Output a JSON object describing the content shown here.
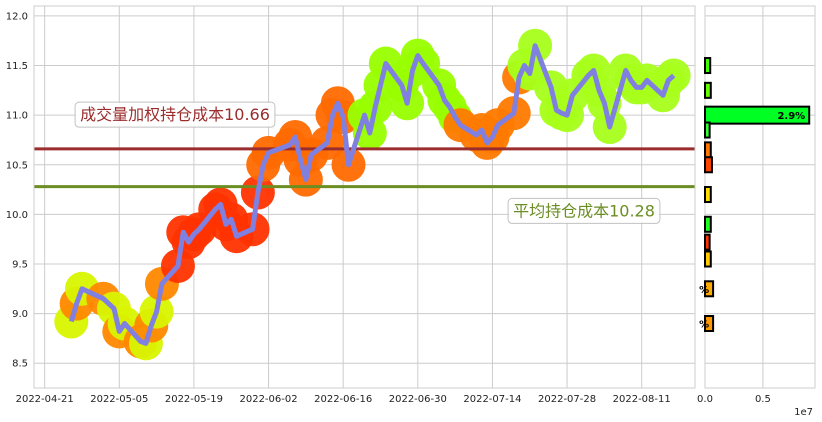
{
  "chart_data": [
    {
      "type": "line",
      "x_ticks": [
        "2022-04-21",
        "2022-05-05",
        "2022-05-19",
        "2022-06-02",
        "2022-06-16",
        "2022-06-30",
        "2022-07-14",
        "2022-07-28",
        "2022-08-11"
      ],
      "y_ticks": [
        "8.5",
        "9.0",
        "9.5",
        "10.0",
        "10.5",
        "11.0",
        "11.5",
        "12.0"
      ],
      "ylim": [
        8.25,
        12.1
      ],
      "xlim": [
        "2022-04-19",
        "2022-08-21"
      ],
      "grid": true,
      "series": [
        {
          "color": "#8080e0",
          "points": [
            [
              "2022-04-26",
              8.92
            ],
            [
              "2022-04-27",
              9.1
            ],
            [
              "2022-04-28",
              9.25
            ],
            [
              "2022-05-02",
              9.15
            ],
            [
              "2022-05-04",
              9.05
            ],
            [
              "2022-05-05",
              8.82
            ],
            [
              "2022-05-06",
              8.9
            ],
            [
              "2022-05-09",
              8.72
            ],
            [
              "2022-05-10",
              8.7
            ],
            [
              "2022-05-11",
              8.88
            ],
            [
              "2022-05-12",
              9.02
            ],
            [
              "2022-05-13",
              9.3
            ],
            [
              "2022-05-16",
              9.48
            ],
            [
              "2022-05-17",
              9.82
            ],
            [
              "2022-05-18",
              9.72
            ],
            [
              "2022-05-19",
              9.8
            ],
            [
              "2022-05-20",
              9.85
            ],
            [
              "2022-05-23",
              10.05
            ],
            [
              "2022-05-24",
              10.1
            ],
            [
              "2022-05-25",
              9.9
            ],
            [
              "2022-05-26",
              9.95
            ],
            [
              "2022-05-27",
              9.78
            ],
            [
              "2022-05-30",
              9.85
            ],
            [
              "2022-05-31",
              10.22
            ],
            [
              "2022-06-01",
              10.5
            ],
            [
              "2022-06-02",
              10.62
            ],
            [
              "2022-06-06",
              10.7
            ],
            [
              "2022-06-07",
              10.78
            ],
            [
              "2022-06-08",
              10.55
            ],
            [
              "2022-06-09",
              10.35
            ],
            [
              "2022-06-10",
              10.6
            ],
            [
              "2022-06-13",
              10.72
            ],
            [
              "2022-06-14",
              11.0
            ],
            [
              "2022-06-15",
              11.12
            ],
            [
              "2022-06-16",
              10.98
            ],
            [
              "2022-06-17",
              10.5
            ],
            [
              "2022-06-20",
              11.0
            ],
            [
              "2022-06-21",
              10.82
            ],
            [
              "2022-06-22",
              11.08
            ],
            [
              "2022-06-23",
              11.3
            ],
            [
              "2022-06-24",
              11.52
            ],
            [
              "2022-06-27",
              11.3
            ],
            [
              "2022-06-28",
              11.12
            ],
            [
              "2022-06-29",
              11.45
            ],
            [
              "2022-06-30",
              11.6
            ],
            [
              "2022-07-01",
              11.52
            ],
            [
              "2022-07-04",
              11.3
            ],
            [
              "2022-07-05",
              11.15
            ],
            [
              "2022-07-06",
              11.08
            ],
            [
              "2022-07-07",
              10.98
            ],
            [
              "2022-07-08",
              10.9
            ],
            [
              "2022-07-11",
              10.8
            ],
            [
              "2022-07-12",
              10.85
            ],
            [
              "2022-07-13",
              10.72
            ],
            [
              "2022-07-14",
              10.78
            ],
            [
              "2022-07-15",
              10.9
            ],
            [
              "2022-07-18",
              11.02
            ],
            [
              "2022-07-19",
              11.38
            ],
            [
              "2022-07-20",
              11.5
            ],
            [
              "2022-07-21",
              11.42
            ],
            [
              "2022-07-22",
              11.7
            ],
            [
              "2022-07-25",
              11.28
            ],
            [
              "2022-07-26",
              11.05
            ],
            [
              "2022-07-27",
              11.02
            ],
            [
              "2022-07-28",
              11.0
            ],
            [
              "2022-07-29",
              11.2
            ],
            [
              "2022-08-01",
              11.4
            ],
            [
              "2022-08-02",
              11.45
            ],
            [
              "2022-08-03",
              11.25
            ],
            [
              "2022-08-04",
              11.12
            ],
            [
              "2022-08-05",
              10.88
            ],
            [
              "2022-08-08",
              11.45
            ],
            [
              "2022-08-09",
              11.35
            ],
            [
              "2022-08-10",
              11.28
            ],
            [
              "2022-08-11",
              11.28
            ],
            [
              "2022-08-12",
              11.35
            ],
            [
              "2022-08-15",
              11.2
            ],
            [
              "2022-08-16",
              11.35
            ],
            [
              "2022-08-17",
              11.4
            ]
          ]
        }
      ],
      "hlines": [
        {
          "label": "成交量加权持仓成本10.66",
          "value": 10.66,
          "color": "#9b2d2d",
          "text_color": "#9b2d2d"
        },
        {
          "label": "平均持仓成本10.28",
          "value": 10.28,
          "color": "#6b8e23",
          "text_color": "#6b8e23"
        }
      ]
    },
    {
      "type": "bar",
      "orientation": "horizontal",
      "x_ticks": [
        "0.0",
        "0.5"
      ],
      "x_multiplier": "1e7",
      "xlim": [
        0,
        0.95
      ],
      "bars": [
        {
          "price": 11.5,
          "value": 0.045,
          "color": "#44ff00",
          "label": ""
        },
        {
          "price": 11.25,
          "value": 0.05,
          "color": "#66ff00",
          "label": ""
        },
        {
          "price": 11.0,
          "value": 0.9,
          "color": "#00ff22",
          "label": "2.9%"
        },
        {
          "price": 10.85,
          "value": 0.04,
          "color": "#33ff33",
          "label": ""
        },
        {
          "price": 10.65,
          "value": 0.05,
          "color": "#ff7700",
          "label": ""
        },
        {
          "price": 10.5,
          "value": 0.06,
          "color": "#ff4400",
          "label": ""
        },
        {
          "price": 10.2,
          "value": 0.05,
          "color": "#ffdd00",
          "label": ""
        },
        {
          "price": 9.9,
          "value": 0.05,
          "color": "#22ff22",
          "label": ""
        },
        {
          "price": 9.72,
          "value": 0.04,
          "color": "#ff3300",
          "label": ""
        },
        {
          "price": 9.55,
          "value": 0.05,
          "color": "#ffcc00",
          "label": ""
        },
        {
          "price": 9.25,
          "value": 0.07,
          "color": "#ffaa00",
          "label": "%"
        },
        {
          "price": 8.9,
          "value": 0.07,
          "color": "#ff9900",
          "label": "%"
        }
      ]
    }
  ]
}
